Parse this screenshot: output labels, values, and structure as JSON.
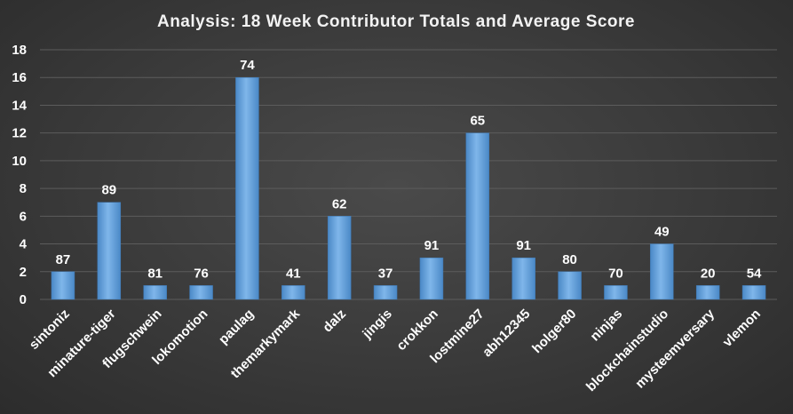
{
  "chart_data": {
    "type": "bar",
    "title": "Analysis:  18 Week Contributor Totals and Average Score",
    "xlabel": "",
    "ylabel": "",
    "ylim": [
      0,
      18
    ],
    "yticks": [
      0,
      2,
      4,
      6,
      8,
      10,
      12,
      14,
      16,
      18
    ],
    "grid": true,
    "categories": [
      "sintoniz",
      "minature-tiger",
      "flugschwein",
      "lokomotion",
      "paulag",
      "themarkymark",
      "dalz",
      "jingis",
      "crokkon",
      "lostmine27",
      "abh12345",
      "holger80",
      "ninjas",
      "blockchainstudio",
      "mysteemversary",
      "vlemon"
    ],
    "series": [
      {
        "values": [
          2,
          7,
          1,
          1,
          16,
          1,
          6,
          1,
          3,
          12,
          3,
          2,
          1,
          4,
          1,
          1
        ],
        "data_labels": [
          "87",
          "89",
          "81",
          "76",
          "74",
          "41",
          "62",
          "37",
          "91",
          "65",
          "91",
          "80",
          "70",
          "49",
          "20",
          "54"
        ],
        "color": "#5b9bd5"
      }
    ]
  }
}
